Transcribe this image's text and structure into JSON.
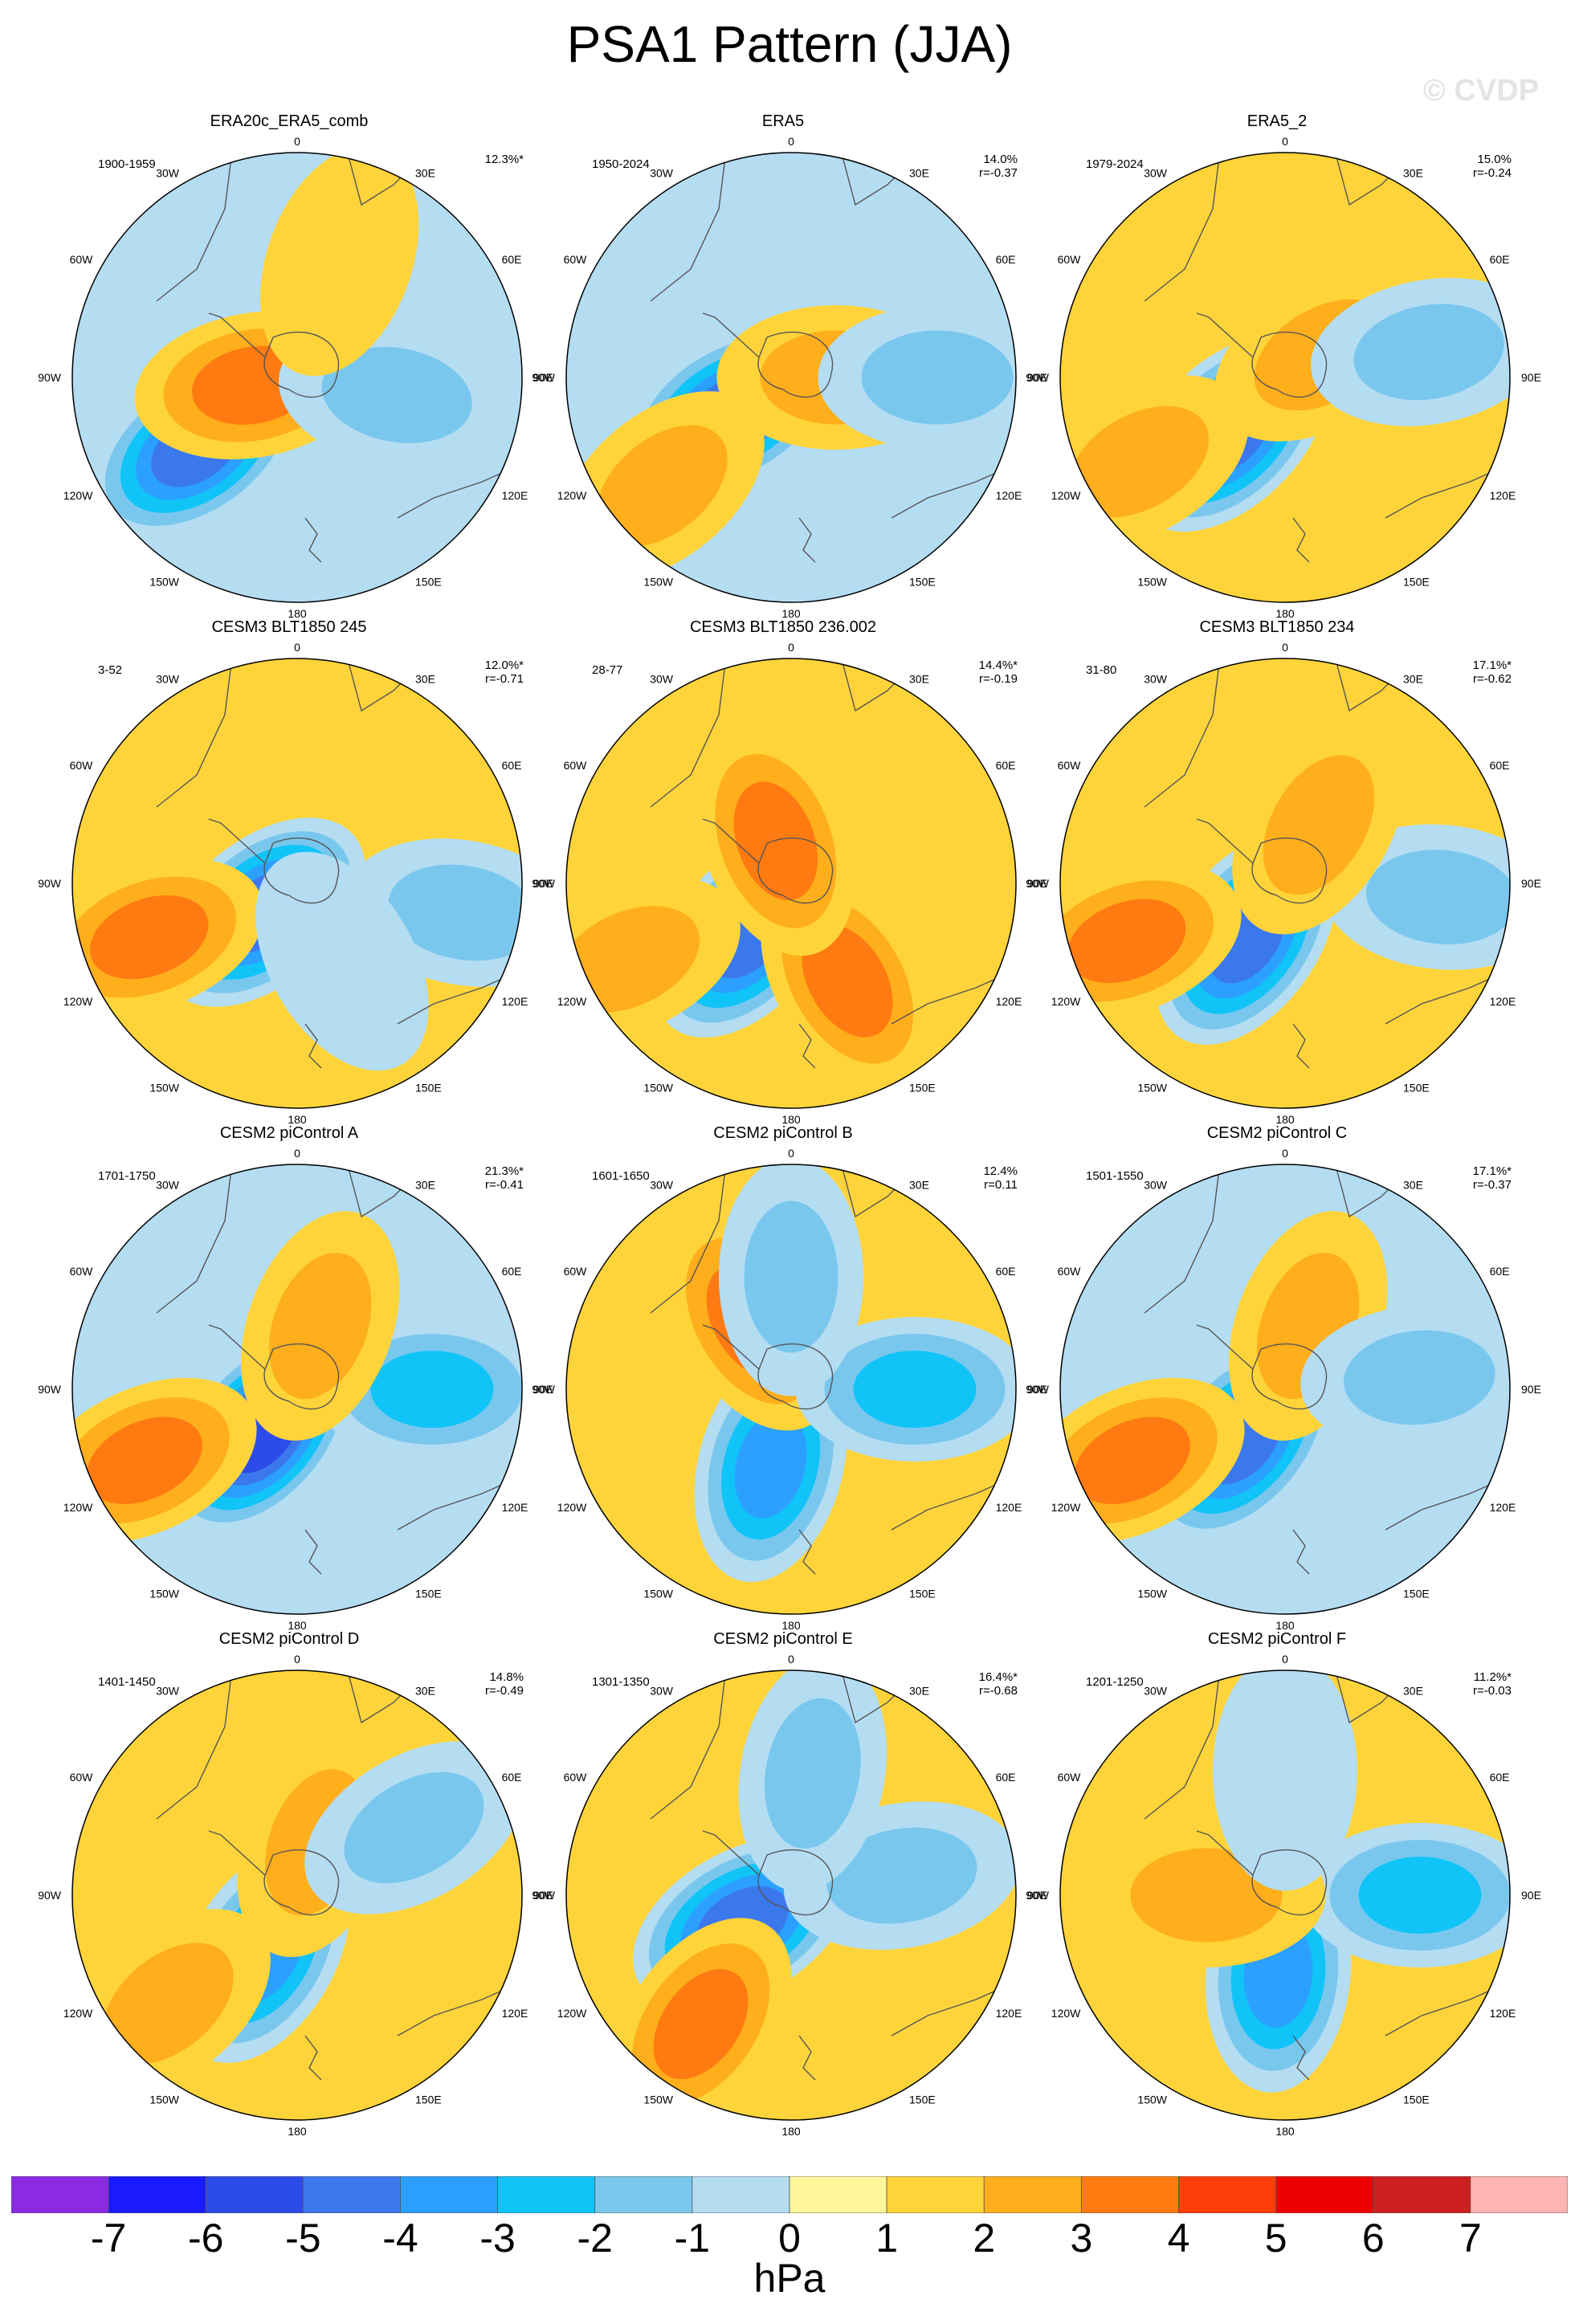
{
  "title": "PSA1 Pattern (JJA)",
  "watermark": "© CVDP",
  "panels": [
    {
      "title": "ERA20c_ERA5_comb",
      "range": "1900-1959",
      "pct": "12.3%*",
      "r": ""
    },
    {
      "title": "ERA5",
      "range": "1950-2024",
      "pct": "14.0%",
      "r": "r=-0.37"
    },
    {
      "title": "ERA5_2",
      "range": "1979-2024",
      "pct": "15.0%",
      "r": "r=-0.24"
    },
    {
      "title": "CESM3 BLT1850 245",
      "range": "3-52",
      "pct": "12.0%*",
      "r": "r=-0.71"
    },
    {
      "title": "CESM3 BLT1850 236.002",
      "range": "28-77",
      "pct": "14.4%*",
      "r": "r=-0.19"
    },
    {
      "title": "CESM3 BLT1850 234",
      "range": "31-80",
      "pct": "17.1%*",
      "r": "r=-0.62"
    },
    {
      "title": "CESM2 piControl A",
      "range": "1701-1750",
      "pct": "21.3%*",
      "r": "r=-0.41"
    },
    {
      "title": "CESM2 piControl B",
      "range": "1601-1650",
      "pct": "12.4%",
      "r": "r=0.11"
    },
    {
      "title": "CESM2 piControl C",
      "range": "1501-1550",
      "pct": "17.1%*",
      "r": "r=-0.37"
    },
    {
      "title": "CESM2 piControl D",
      "range": "1401-1450",
      "pct": "14.8%",
      "r": "r=-0.49"
    },
    {
      "title": "CESM2 piControl E",
      "range": "1301-1350",
      "pct": "16.4%*",
      "r": "r=-0.68"
    },
    {
      "title": "CESM2 piControl F",
      "range": "1201-1250",
      "pct": "11.2%*",
      "r": "r=-0.03"
    }
  ],
  "lon_labels": [
    "0",
    "30E",
    "60E",
    "90E",
    "120E",
    "150E",
    "180",
    "150W",
    "120W",
    "90W",
    "60W",
    "30W"
  ],
  "chart_data": {
    "type": "polar contour map (filled)",
    "variable": "sea level pressure anomaly",
    "units": "hPa",
    "colorbar_levels": [
      -7,
      -6,
      -5,
      -4,
      -3,
      -2,
      -1,
      0,
      1,
      2,
      3,
      4,
      5,
      6,
      7
    ],
    "colorbar_colors": [
      "#8a2be2",
      "#1a1aff",
      "#2c4be8",
      "#3b78ee",
      "#2ba0ff",
      "#10c4f8",
      "#7ac7ee",
      "#b4ddf2",
      "#fff59a",
      "#ffd43a",
      "#ffae1c",
      "#ff7a10",
      "#ff3d08",
      "#ee0000",
      "#cc2020",
      "#ffb4b4"
    ],
    "anomaly_features": [
      {
        "panel": "ERA20c_ERA5_comb",
        "background": -1,
        "features": [
          {
            "lon": -125,
            "colat": 0.55,
            "value": -5
          },
          {
            "lon": -100,
            "colat": 0.2,
            "value": 3
          },
          {
            "lon": 100,
            "colat": 0.45,
            "value": -2
          },
          {
            "lon": 20,
            "colat": 0.55,
            "value": 1
          }
        ]
      },
      {
        "panel": "ERA5",
        "background": -1,
        "features": [
          {
            "lon": -120,
            "colat": 0.3,
            "value": -5
          },
          {
            "lon": -130,
            "colat": 0.75,
            "value": 2
          },
          {
            "lon": 90,
            "colat": 0.2,
            "value": 2
          },
          {
            "lon": 90,
            "colat": 0.65,
            "value": -2
          }
        ]
      },
      {
        "panel": "ERA5_2",
        "background": 1,
        "features": [
          {
            "lon": -135,
            "colat": 0.35,
            "value": -5
          },
          {
            "lon": -120,
            "colat": 0.75,
            "value": 2
          },
          {
            "lon": 60,
            "colat": 0.2,
            "value": 2
          },
          {
            "lon": 80,
            "colat": 0.65,
            "value": -2
          }
        ]
      },
      {
        "panel": "CESM3 BLT1850 245",
        "background": 1,
        "features": [
          {
            "lon": -130,
            "colat": 0.2,
            "value": -5
          },
          {
            "lon": -110,
            "colat": 0.7,
            "value": 3
          },
          {
            "lon": 100,
            "colat": 0.75,
            "value": -2
          },
          {
            "lon": 150,
            "colat": 0.4,
            "value": -1
          }
        ]
      },
      {
        "panel": "CESM3 BLT1850 236.002",
        "background": 1,
        "features": [
          {
            "lon": -140,
            "colat": 0.3,
            "value": -5
          },
          {
            "lon": -115,
            "colat": 0.8,
            "value": 2
          },
          {
            "lon": 150,
            "colat": 0.5,
            "value": 3
          },
          {
            "lon": -20,
            "colat": 0.2,
            "value": 3
          }
        ]
      },
      {
        "panel": "CESM3 BLT1850 234",
        "background": 1,
        "features": [
          {
            "lon": -145,
            "colat": 0.3,
            "value": -5
          },
          {
            "lon": -110,
            "colat": 0.75,
            "value": 3
          },
          {
            "lon": 95,
            "colat": 0.7,
            "value": -2
          },
          {
            "lon": 30,
            "colat": 0.3,
            "value": 2
          }
        ]
      },
      {
        "panel": "CESM2 piControl A",
        "background": -1,
        "features": [
          {
            "lon": -140,
            "colat": 0.25,
            "value": -6
          },
          {
            "lon": -115,
            "colat": 0.75,
            "value": 3
          },
          {
            "lon": 90,
            "colat": 0.6,
            "value": -3
          },
          {
            "lon": 20,
            "colat": 0.3,
            "value": 2
          }
        ]
      },
      {
        "panel": "CESM2 piControl B",
        "background": 1,
        "features": [
          {
            "lon": -165,
            "colat": 0.35,
            "value": -4
          },
          {
            "lon": -30,
            "colat": 0.35,
            "value": 3
          },
          {
            "lon": 90,
            "colat": 0.55,
            "value": -3
          },
          {
            "lon": 0,
            "colat": 0.5,
            "value": -2
          }
        ]
      },
      {
        "panel": "CESM2 piControl C",
        "background": -1,
        "features": [
          {
            "lon": -140,
            "colat": 0.3,
            "value": -5
          },
          {
            "lon": -115,
            "colat": 0.75,
            "value": 3
          },
          {
            "lon": 20,
            "colat": 0.3,
            "value": 2
          },
          {
            "lon": 85,
            "colat": 0.6,
            "value": -2
          }
        ]
      },
      {
        "panel": "CESM2 piControl D",
        "background": 1,
        "features": [
          {
            "lon": -150,
            "colat": 0.3,
            "value": -4
          },
          {
            "lon": -130,
            "colat": 0.75,
            "value": 2
          },
          {
            "lon": 20,
            "colat": 0.25,
            "value": 2
          },
          {
            "lon": 60,
            "colat": 0.6,
            "value": -2
          }
        ]
      },
      {
        "panel": "CESM2 piControl E",
        "background": 1,
        "features": [
          {
            "lon": -120,
            "colat": 0.25,
            "value": -5
          },
          {
            "lon": -145,
            "colat": 0.7,
            "value": 3
          },
          {
            "lon": 80,
            "colat": 0.5,
            "value": -2
          },
          {
            "lon": 10,
            "colat": 0.55,
            "value": -2
          }
        ]
      },
      {
        "panel": "CESM2 piControl F",
        "background": 1,
        "features": [
          {
            "lon": -175,
            "colat": 0.35,
            "value": -4
          },
          {
            "lon": 90,
            "colat": 0.6,
            "value": -3
          },
          {
            "lon": -90,
            "colat": 0.35,
            "value": 2
          },
          {
            "lon": 0,
            "colat": 0.55,
            "value": -1
          }
        ]
      }
    ]
  }
}
